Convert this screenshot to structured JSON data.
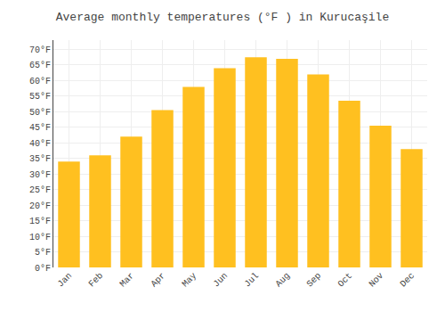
{
  "chart_data": {
    "type": "bar",
    "title": "Average monthly temperatures (°F ) in Kurucaşile",
    "categories": [
      "Jan",
      "Feb",
      "Mar",
      "Apr",
      "May",
      "Jun",
      "Jul",
      "Aug",
      "Sep",
      "Oct",
      "Nov",
      "Dec"
    ],
    "values": [
      34,
      36,
      42,
      50.5,
      58,
      64,
      67.5,
      67,
      62,
      53.5,
      45.5,
      38
    ],
    "color": "#FFC020",
    "ylim": [
      0,
      73
    ],
    "yticks": [
      {
        "value": 0,
        "label": "0°F"
      },
      {
        "value": 5,
        "label": "5°F"
      },
      {
        "value": 10,
        "label": "10°F"
      },
      {
        "value": 15,
        "label": "15°F"
      },
      {
        "value": 20,
        "label": "20°F"
      },
      {
        "value": 25,
        "label": "25°F"
      },
      {
        "value": 30,
        "label": "30°F"
      },
      {
        "value": 35,
        "label": "35°F"
      },
      {
        "value": 40,
        "label": "40°F"
      },
      {
        "value": 45,
        "label": "45°F"
      },
      {
        "value": 50,
        "label": "50°F"
      },
      {
        "value": 55,
        "label": "55°F"
      },
      {
        "value": 60,
        "label": "60°F"
      },
      {
        "value": 65,
        "label": "65°F"
      },
      {
        "value": 70,
        "label": "70°F"
      }
    ],
    "grid": true
  }
}
